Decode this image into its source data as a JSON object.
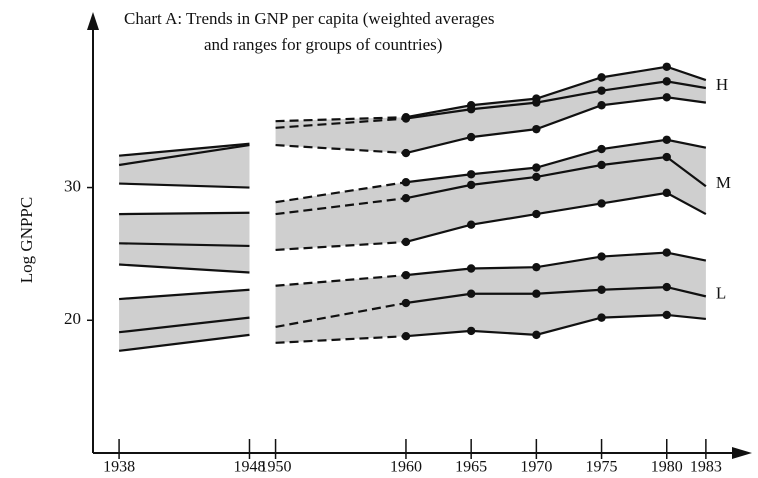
{
  "chart_data": {
    "type": "range-band",
    "title_lines": [
      "Chart A: Trends in GNP per capita (weighted averages",
      "and ranges for groups of countries)"
    ],
    "y_label": "Log GNPPC",
    "x": [
      1938,
      1948,
      1950,
      1960,
      1965,
      1970,
      1975,
      1980,
      1983
    ],
    "xlim": [
      1936,
      1986
    ],
    "xticks": [
      1938,
      1948,
      1950,
      1960,
      1965,
      1970,
      1975,
      1980,
      1983
    ],
    "ylim": [
      10,
      43
    ],
    "yticks": [
      20,
      30
    ],
    "segment_styles": [
      "solid",
      "gap",
      "dashed",
      "solid",
      "solid",
      "solid",
      "solid",
      "solid"
    ],
    "markers": [
      false,
      false,
      false,
      true,
      true,
      true,
      true,
      true,
      false
    ],
    "band_color": "#cfcfcf",
    "line_color": "#111111",
    "groups": [
      {
        "name": "H",
        "upper": [
          32.4,
          33.3,
          35.0,
          35.3,
          36.2,
          36.7,
          38.3,
          39.1,
          38.1
        ],
        "average": [
          31.7,
          33.2,
          34.5,
          35.2,
          35.9,
          36.4,
          37.3,
          38.0,
          37.5
        ],
        "lower": [
          30.3,
          30.0,
          33.2,
          32.6,
          33.8,
          34.4,
          36.2,
          36.8,
          36.4
        ]
      },
      {
        "name": "M",
        "upper": [
          28.0,
          28.1,
          28.9,
          30.4,
          31.0,
          31.5,
          32.9,
          33.6,
          33.0
        ],
        "average": [
          25.8,
          25.6,
          28.0,
          29.2,
          30.2,
          30.8,
          31.7,
          32.3,
          30.1
        ],
        "lower": [
          24.2,
          23.6,
          25.3,
          25.9,
          27.2,
          28.0,
          28.8,
          29.6,
          28.0
        ]
      },
      {
        "name": "L",
        "upper": [
          21.6,
          22.3,
          22.6,
          23.4,
          23.9,
          24.0,
          24.8,
          25.1,
          24.5
        ],
        "average": [
          19.1,
          20.2,
          19.5,
          21.3,
          22.0,
          22.0,
          22.3,
          22.5,
          21.8
        ],
        "lower": [
          17.7,
          18.9,
          18.3,
          18.8,
          19.2,
          18.9,
          20.2,
          20.4,
          20.1
        ]
      }
    ]
  }
}
